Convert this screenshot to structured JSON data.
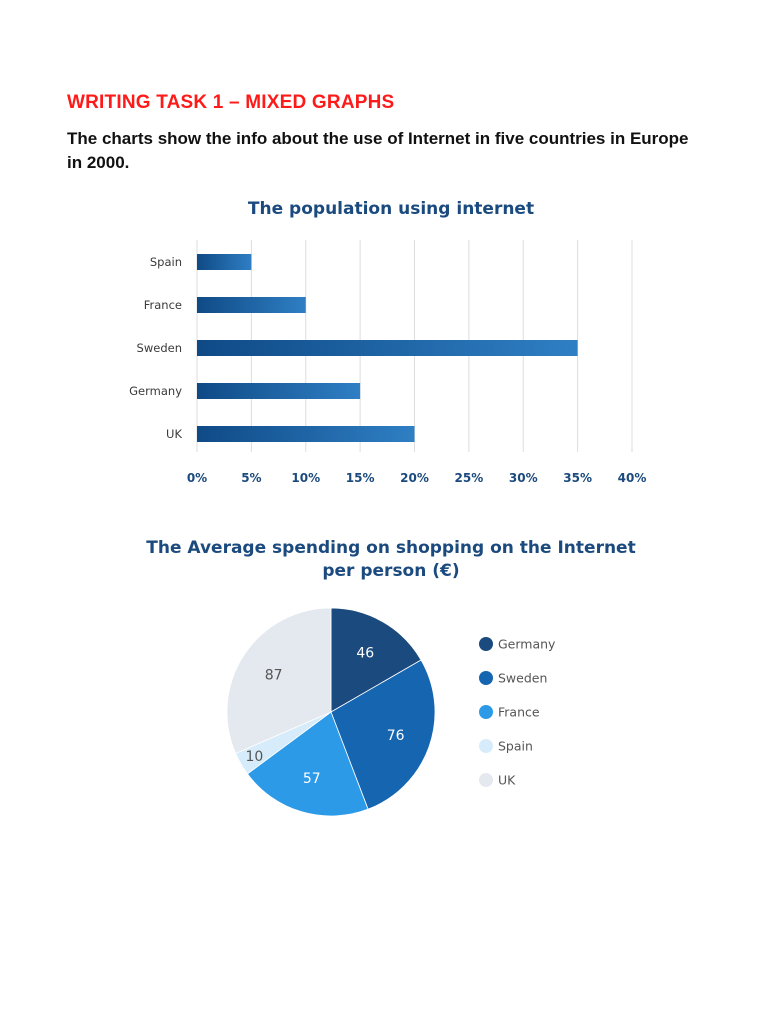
{
  "document": {
    "heading": "WRITING TASK 1 – MIXED GRAPHS",
    "intro": "The charts show the info about the use of Internet in five countries in Europe in 2000."
  },
  "colors": {
    "heading": "#ff1a1a",
    "chart_title": "#1b4a7e",
    "bar_dark": "#0f4a86",
    "bar_light": "#2f7fc4"
  },
  "chart_data": [
    {
      "type": "bar",
      "orientation": "horizontal",
      "title": "The population using internet",
      "categories": [
        "Spain",
        "France",
        "Sweden",
        "Germany",
        "UK"
      ],
      "values": [
        5,
        10,
        35,
        15,
        20
      ],
      "unit": "%",
      "xlim": [
        0,
        40
      ],
      "xticks": [
        "0%",
        "5%",
        "10%",
        "15%",
        "20%",
        "25%",
        "30%",
        "35%",
        "40%"
      ],
      "grid": true,
      "xlabel": "",
      "ylabel": ""
    },
    {
      "type": "pie",
      "title": "The Average spending on shopping on the Internet per person (€)",
      "title_lines": [
        "The Average spending on shopping on the Internet",
        "per person (€)"
      ],
      "slices": [
        {
          "label": "Germany",
          "value": 46,
          "color": "#1b4a7e",
          "text_color": "#ffffff"
        },
        {
          "label": "Sweden",
          "value": 76,
          "color": "#1565b0",
          "text_color": "#ffffff"
        },
        {
          "label": "France",
          "value": 57,
          "color": "#2d9ae8",
          "text_color": "#ffffff"
        },
        {
          "label": "Spain",
          "value": 10,
          "color": "#d6ecfa",
          "text_color": "#555555"
        },
        {
          "label": "UK",
          "value": 87,
          "color": "#e4e8ef",
          "text_color": "#555555"
        }
      ],
      "legend_position": "right"
    }
  ]
}
